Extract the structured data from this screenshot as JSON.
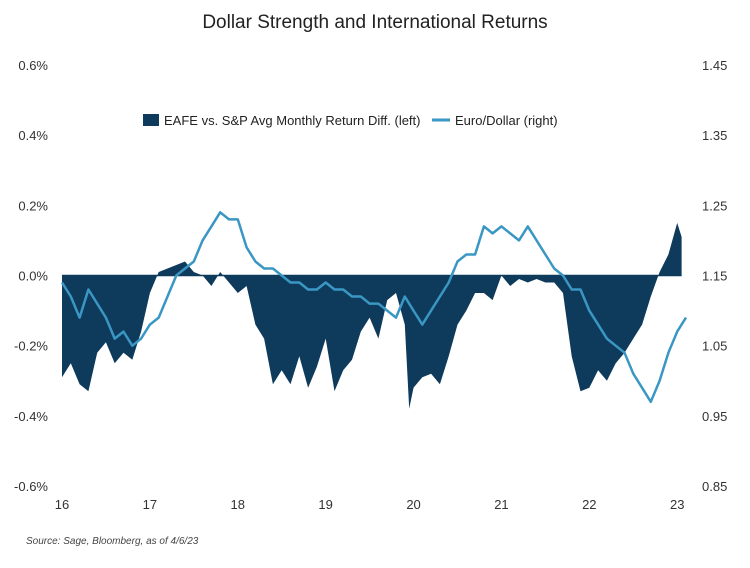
{
  "chart_data": {
    "type": "area+line",
    "title": "Dollar Strength and International Returns",
    "source": "Source: Sage, Bloomberg, as of 4/6/23",
    "x_range": [
      2016.0,
      2023.1
    ],
    "x_ticks": [
      "16",
      "17",
      "18",
      "19",
      "20",
      "21",
      "22",
      "23"
    ],
    "left_axis": {
      "min": -0.6,
      "max": 0.6,
      "ticks": [
        "0.6%",
        "0.4%",
        "0.2%",
        "0.0%",
        "-0.2%",
        "-0.4%",
        "-0.6%"
      ]
    },
    "right_axis": {
      "min": 0.85,
      "max": 1.45,
      "ticks": [
        "1.45",
        "1.35",
        "1.25",
        "1.15",
        "1.05",
        "0.95",
        "0.85"
      ]
    },
    "legend": {
      "placement": "top-center"
    },
    "colors": {
      "area": "#0e3a5c",
      "line": "#3a97c3",
      "zero_line": "#0e3a5c"
    },
    "series": [
      {
        "name": "EAFE vs. S&P Avg Monthly Return Diff. (left)",
        "axis": "left",
        "kind": "area",
        "x": [
          2016.0,
          2016.1,
          2016.2,
          2016.3,
          2016.4,
          2016.5,
          2016.6,
          2016.7,
          2016.8,
          2016.9,
          2017.0,
          2017.1,
          2017.2,
          2017.3,
          2017.4,
          2017.5,
          2017.6,
          2017.7,
          2017.8,
          2017.9,
          2018.0,
          2018.1,
          2018.2,
          2018.3,
          2018.4,
          2018.5,
          2018.6,
          2018.7,
          2018.8,
          2018.9,
          2019.0,
          2019.1,
          2019.2,
          2019.3,
          2019.4,
          2019.5,
          2019.6,
          2019.7,
          2019.8,
          2019.9,
          2019.95,
          2020.0,
          2020.1,
          2020.2,
          2020.3,
          2020.4,
          2020.5,
          2020.6,
          2020.7,
          2020.8,
          2020.9,
          2021.0,
          2021.1,
          2021.2,
          2021.3,
          2021.4,
          2021.5,
          2021.6,
          2021.7,
          2021.8,
          2021.9,
          2022.0,
          2022.1,
          2022.2,
          2022.3,
          2022.4,
          2022.5,
          2022.6,
          2022.7,
          2022.8,
          2022.9,
          2023.0,
          2023.05
        ],
        "values": [
          -0.29,
          -0.25,
          -0.31,
          -0.33,
          -0.22,
          -0.19,
          -0.25,
          -0.22,
          -0.24,
          -0.16,
          -0.05,
          0.01,
          0.02,
          0.03,
          0.04,
          0.01,
          0.0,
          -0.03,
          0.01,
          -0.02,
          -0.05,
          -0.03,
          -0.14,
          -0.18,
          -0.31,
          -0.27,
          -0.31,
          -0.23,
          -0.32,
          -0.26,
          -0.18,
          -0.33,
          -0.27,
          -0.24,
          -0.16,
          -0.12,
          -0.18,
          -0.07,
          -0.05,
          -0.14,
          -0.38,
          -0.32,
          -0.29,
          -0.28,
          -0.31,
          -0.23,
          -0.14,
          -0.1,
          -0.05,
          -0.05,
          -0.07,
          0.0,
          -0.03,
          -0.01,
          -0.02,
          -0.01,
          -0.02,
          -0.02,
          -0.05,
          -0.23,
          -0.33,
          -0.32,
          -0.27,
          -0.3,
          -0.25,
          -0.22,
          -0.18,
          -0.14,
          -0.06,
          0.01,
          0.06,
          0.15,
          0.11
        ]
      },
      {
        "name": "Euro/Dollar (right)",
        "axis": "right",
        "kind": "line",
        "x": [
          2016.0,
          2016.1,
          2016.2,
          2016.3,
          2016.4,
          2016.5,
          2016.6,
          2016.7,
          2016.8,
          2016.9,
          2017.0,
          2017.1,
          2017.2,
          2017.3,
          2017.4,
          2017.5,
          2017.6,
          2017.7,
          2017.8,
          2017.9,
          2018.0,
          2018.1,
          2018.2,
          2018.3,
          2018.4,
          2018.5,
          2018.6,
          2018.7,
          2018.8,
          2018.9,
          2019.0,
          2019.1,
          2019.2,
          2019.3,
          2019.4,
          2019.5,
          2019.6,
          2019.7,
          2019.8,
          2019.9,
          2020.0,
          2020.1,
          2020.2,
          2020.3,
          2020.4,
          2020.5,
          2020.6,
          2020.7,
          2020.8,
          2020.9,
          2021.0,
          2021.1,
          2021.2,
          2021.3,
          2021.4,
          2021.5,
          2021.6,
          2021.7,
          2021.8,
          2021.9,
          2022.0,
          2022.1,
          2022.2,
          2022.3,
          2022.4,
          2022.5,
          2022.6,
          2022.7,
          2022.8,
          2022.9,
          2023.0,
          2023.05,
          2023.1
        ],
        "values": [
          1.14,
          1.12,
          1.09,
          1.13,
          1.11,
          1.09,
          1.06,
          1.07,
          1.05,
          1.06,
          1.08,
          1.09,
          1.12,
          1.15,
          1.16,
          1.17,
          1.2,
          1.22,
          1.24,
          1.23,
          1.23,
          1.19,
          1.17,
          1.16,
          1.16,
          1.15,
          1.14,
          1.14,
          1.13,
          1.13,
          1.14,
          1.13,
          1.13,
          1.12,
          1.12,
          1.11,
          1.11,
          1.1,
          1.09,
          1.12,
          1.1,
          1.08,
          1.1,
          1.12,
          1.14,
          1.17,
          1.18,
          1.18,
          1.22,
          1.21,
          1.22,
          1.21,
          1.2,
          1.22,
          1.2,
          1.18,
          1.16,
          1.15,
          1.13,
          1.13,
          1.1,
          1.08,
          1.06,
          1.05,
          1.04,
          1.01,
          0.99,
          0.97,
          1.0,
          1.04,
          1.07,
          1.08,
          1.09
        ]
      }
    ]
  }
}
